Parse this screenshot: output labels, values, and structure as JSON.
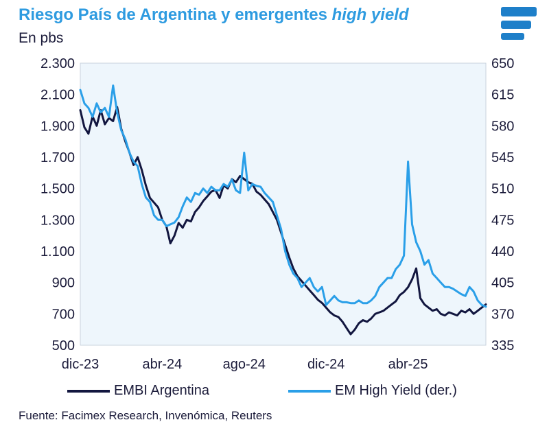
{
  "header": {
    "title_main": "Riesgo País de Argentina y emergentes ",
    "title_italic": "high yield",
    "unit_label": "En pbs"
  },
  "logo": {
    "icon": "facimex-logo-icon",
    "color": "#1e7fc9"
  },
  "colors": {
    "embi": "#12163f",
    "hy": "#2a9fe8",
    "plot_bg": "#eef6fc",
    "title": "#2e9be0"
  },
  "chart_data": {
    "type": "line",
    "title": "Riesgo País de Argentina y emergentes high yield",
    "ylabel": "En pbs",
    "x_ticks": [
      "dic-23",
      "abr-24",
      "ago-24",
      "dic-24",
      "abr-25"
    ],
    "x_tick_positions": [
      0,
      4,
      8,
      12,
      16
    ],
    "xlim": [
      0,
      19.8
    ],
    "y_left": {
      "lim": [
        500,
        2300
      ],
      "ticks": [
        "2.300",
        "2.100",
        "1.900",
        "1.700",
        "1.500",
        "1.300",
        "1.100",
        "900",
        "700",
        "500"
      ]
    },
    "y_right": {
      "lim": [
        335,
        650
      ],
      "ticks": [
        "650",
        "615",
        "580",
        "545",
        "510",
        "475",
        "440",
        "405",
        "370",
        "335"
      ]
    },
    "grid": false,
    "legend": "bottom",
    "series": [
      {
        "name": "EMBI Argentina",
        "axis": "left",
        "color": "#12163f",
        "x": [
          0,
          0.2,
          0.4,
          0.6,
          0.8,
          1.0,
          1.2,
          1.4,
          1.6,
          1.8,
          2.0,
          2.2,
          2.4,
          2.6,
          2.8,
          3.0,
          3.2,
          3.4,
          3.6,
          3.8,
          4.0,
          4.2,
          4.4,
          4.6,
          4.8,
          5.0,
          5.2,
          5.4,
          5.6,
          5.8,
          6.0,
          6.2,
          6.4,
          6.6,
          6.8,
          7.0,
          7.2,
          7.4,
          7.6,
          7.8,
          8.0,
          8.2,
          8.4,
          8.6,
          8.8,
          9.0,
          9.2,
          9.4,
          9.6,
          9.8,
          10.0,
          10.2,
          10.4,
          10.6,
          10.8,
          11.0,
          11.2,
          11.4,
          11.6,
          11.8,
          12.0,
          12.2,
          12.4,
          12.6,
          12.8,
          13.0,
          13.2,
          13.4,
          13.6,
          13.8,
          14.0,
          14.2,
          14.4,
          14.6,
          14.8,
          15.0,
          15.2,
          15.4,
          15.6,
          15.8,
          16.0,
          16.2,
          16.4,
          16.6,
          16.8,
          17.0,
          17.2,
          17.4,
          17.6,
          17.8,
          18.0,
          18.2,
          18.4,
          18.6,
          18.8,
          19.0,
          19.2,
          19.4,
          19.6,
          19.8
        ],
        "values": [
          2000,
          1890,
          1850,
          1960,
          1900,
          2000,
          1910,
          1950,
          1930,
          2020,
          1880,
          1800,
          1730,
          1650,
          1700,
          1620,
          1520,
          1440,
          1410,
          1380,
          1300,
          1260,
          1150,
          1200,
          1280,
          1250,
          1300,
          1290,
          1350,
          1380,
          1420,
          1450,
          1480,
          1490,
          1440,
          1520,
          1500,
          1560,
          1540,
          1580,
          1560,
          1540,
          1530,
          1480,
          1460,
          1430,
          1400,
          1350,
          1300,
          1220,
          1140,
          1060,
          990,
          940,
          910,
          880,
          850,
          820,
          790,
          770,
          740,
          710,
          690,
          680,
          650,
          610,
          570,
          600,
          640,
          660,
          650,
          670,
          700,
          710,
          720,
          740,
          760,
          780,
          820,
          840,
          870,
          920,
          990,
          800,
          760,
          740,
          720,
          730,
          700,
          690,
          710,
          700,
          690,
          720,
          710,
          730,
          700,
          720,
          740,
          760
        ]
      },
      {
        "name": "EM High Yield (der.)",
        "axis": "right",
        "color": "#2a9fe8",
        "x": [
          0,
          0.2,
          0.4,
          0.6,
          0.8,
          1.0,
          1.2,
          1.4,
          1.6,
          1.8,
          2.0,
          2.2,
          2.4,
          2.6,
          2.8,
          3.0,
          3.2,
          3.4,
          3.6,
          3.8,
          4.0,
          4.2,
          4.4,
          4.6,
          4.8,
          5.0,
          5.2,
          5.4,
          5.6,
          5.8,
          6.0,
          6.2,
          6.4,
          6.6,
          6.8,
          7.0,
          7.2,
          7.4,
          7.6,
          7.8,
          8.0,
          8.2,
          8.4,
          8.6,
          8.8,
          9.0,
          9.2,
          9.4,
          9.6,
          9.8,
          10.0,
          10.2,
          10.4,
          10.6,
          10.8,
          11.0,
          11.2,
          11.4,
          11.6,
          11.8,
          12.0,
          12.2,
          12.4,
          12.6,
          12.8,
          13.0,
          13.2,
          13.4,
          13.6,
          13.8,
          14.0,
          14.2,
          14.4,
          14.6,
          14.8,
          15.0,
          15.2,
          15.4,
          15.6,
          15.8,
          16.0,
          16.2,
          16.4,
          16.6,
          16.8,
          17.0,
          17.2,
          17.4,
          17.6,
          17.8,
          18.0,
          18.2,
          18.4,
          18.6,
          18.8,
          19.0,
          19.2,
          19.4,
          19.6,
          19.8
        ],
        "values": [
          620,
          605,
          600,
          590,
          605,
          595,
          600,
          590,
          625,
          595,
          575,
          565,
          550,
          540,
          535,
          515,
          500,
          495,
          480,
          475,
          475,
          468,
          470,
          472,
          478,
          490,
          500,
          495,
          505,
          503,
          510,
          505,
          512,
          508,
          508,
          515,
          512,
          520,
          508,
          505,
          550,
          508,
          515,
          513,
          512,
          505,
          500,
          495,
          480,
          465,
          440,
          425,
          415,
          410,
          400,
          405,
          410,
          400,
          395,
          400,
          380,
          385,
          390,
          385,
          383,
          383,
          382,
          382,
          385,
          382,
          382,
          385,
          390,
          400,
          405,
          410,
          410,
          420,
          425,
          435,
          540,
          470,
          450,
          440,
          425,
          430,
          415,
          410,
          405,
          400,
          400,
          398,
          395,
          392,
          390,
          400,
          395,
          385,
          380,
          378
        ]
      }
    ]
  },
  "legend": {
    "items": [
      {
        "label": "EMBI Argentina",
        "color": "#12163f"
      },
      {
        "label": "EM High Yield (der.)",
        "color": "#2a9fe8"
      }
    ]
  },
  "footer": {
    "source": "Fuente: Facimex Research, Invenómica, Reuters"
  }
}
